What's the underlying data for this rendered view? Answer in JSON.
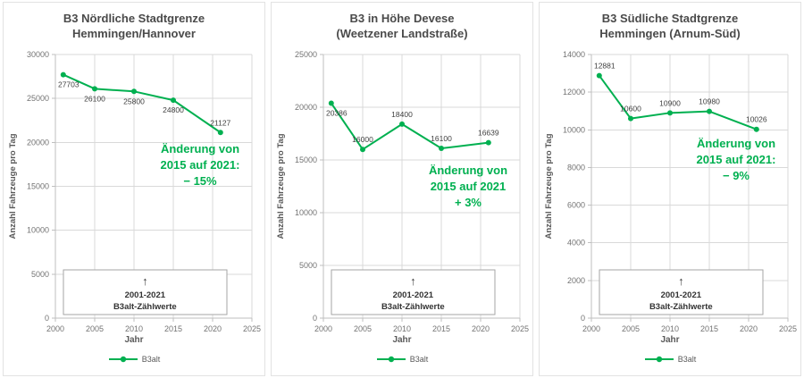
{
  "accent_color": "#00B050",
  "chart_data": [
    {
      "type": "line",
      "title": "B3 Nördliche Stadtgrenze Hemmingen/Hannover",
      "title_lines": [
        "B3 Nördliche Stadtgrenze",
        "Hemmingen/Hannover"
      ],
      "xlabel": "Jahr",
      "ylabel": "Anzahl Fahrzeuge pro Tag",
      "x": [
        2001,
        2005,
        2010,
        2015,
        2021
      ],
      "series": [
        {
          "name": "B3alt",
          "values": [
            27703,
            26100,
            25800,
            24800,
            21127
          ]
        }
      ],
      "xlim": [
        2000,
        2025
      ],
      "xticks": [
        2000,
        2005,
        2010,
        2015,
        2020,
        2025
      ],
      "ylim": [
        0,
        30000
      ],
      "ytick_step": 5000,
      "grid": true,
      "legend_position": "bottom",
      "line_color": "#00B050",
      "label_pos": [
        "below",
        "below",
        "below",
        "below",
        "above"
      ],
      "annotation": "Änderung von\n2015 auf 2021:\n− 15%",
      "textbox": {
        "arrow": "↑",
        "line1": "2001-2021",
        "line2": "B3alt-Zählwerte"
      }
    },
    {
      "type": "line",
      "title": "B3 in Höhe Devese (Weetzener Landstraße)",
      "title_lines": [
        "B3 in Höhe Devese",
        "(Weetzener Landstraße)"
      ],
      "xlabel": "Jahr",
      "ylabel": "Anzahl Fahrzeuge pro Tag",
      "x": [
        2001,
        2005,
        2010,
        2015,
        2021
      ],
      "series": [
        {
          "name": "B3alt",
          "values": [
            20386,
            16000,
            18400,
            16100,
            16639
          ]
        }
      ],
      "xlim": [
        2000,
        2025
      ],
      "xticks": [
        2000,
        2005,
        2010,
        2015,
        2020,
        2025
      ],
      "ylim": [
        0,
        25000
      ],
      "ytick_step": 5000,
      "grid": true,
      "legend_position": "bottom",
      "line_color": "#00B050",
      "label_pos": [
        "below",
        "above",
        "above",
        "above",
        "above"
      ],
      "annotation": "Änderung von\n2015 auf 2021\n+ 3%",
      "textbox": {
        "arrow": "↑",
        "line1": "2001-2021",
        "line2": "B3alt-Zählwerte"
      }
    },
    {
      "type": "line",
      "title": "B3 Südliche Stadtgrenze Hemmingen (Arnum-Süd)",
      "title_lines": [
        "B3 Südliche Stadtgrenze",
        "Hemmingen (Arnum-Süd)"
      ],
      "xlabel": "Jahr",
      "ylabel": "Anzahl Fahrzeuge pro Tag",
      "x": [
        2001,
        2005,
        2010,
        2015,
        2021
      ],
      "series": [
        {
          "name": "B3alt",
          "values": [
            12881,
            10600,
            10900,
            10980,
            10026
          ]
        }
      ],
      "xlim": [
        2000,
        2025
      ],
      "xticks": [
        2000,
        2005,
        2010,
        2015,
        2020,
        2025
      ],
      "ylim": [
        0,
        14000
      ],
      "ytick_step": 2000,
      "grid": true,
      "legend_position": "bottom",
      "line_color": "#00B050",
      "label_pos": [
        "above",
        "above",
        "above",
        "above",
        "above"
      ],
      "annotation": "Änderung von\n2015 auf 2021:\n− 9%",
      "textbox": {
        "arrow": "↑",
        "line1": "2001-2021",
        "line2": "B3alt-Zählwerte"
      }
    }
  ]
}
